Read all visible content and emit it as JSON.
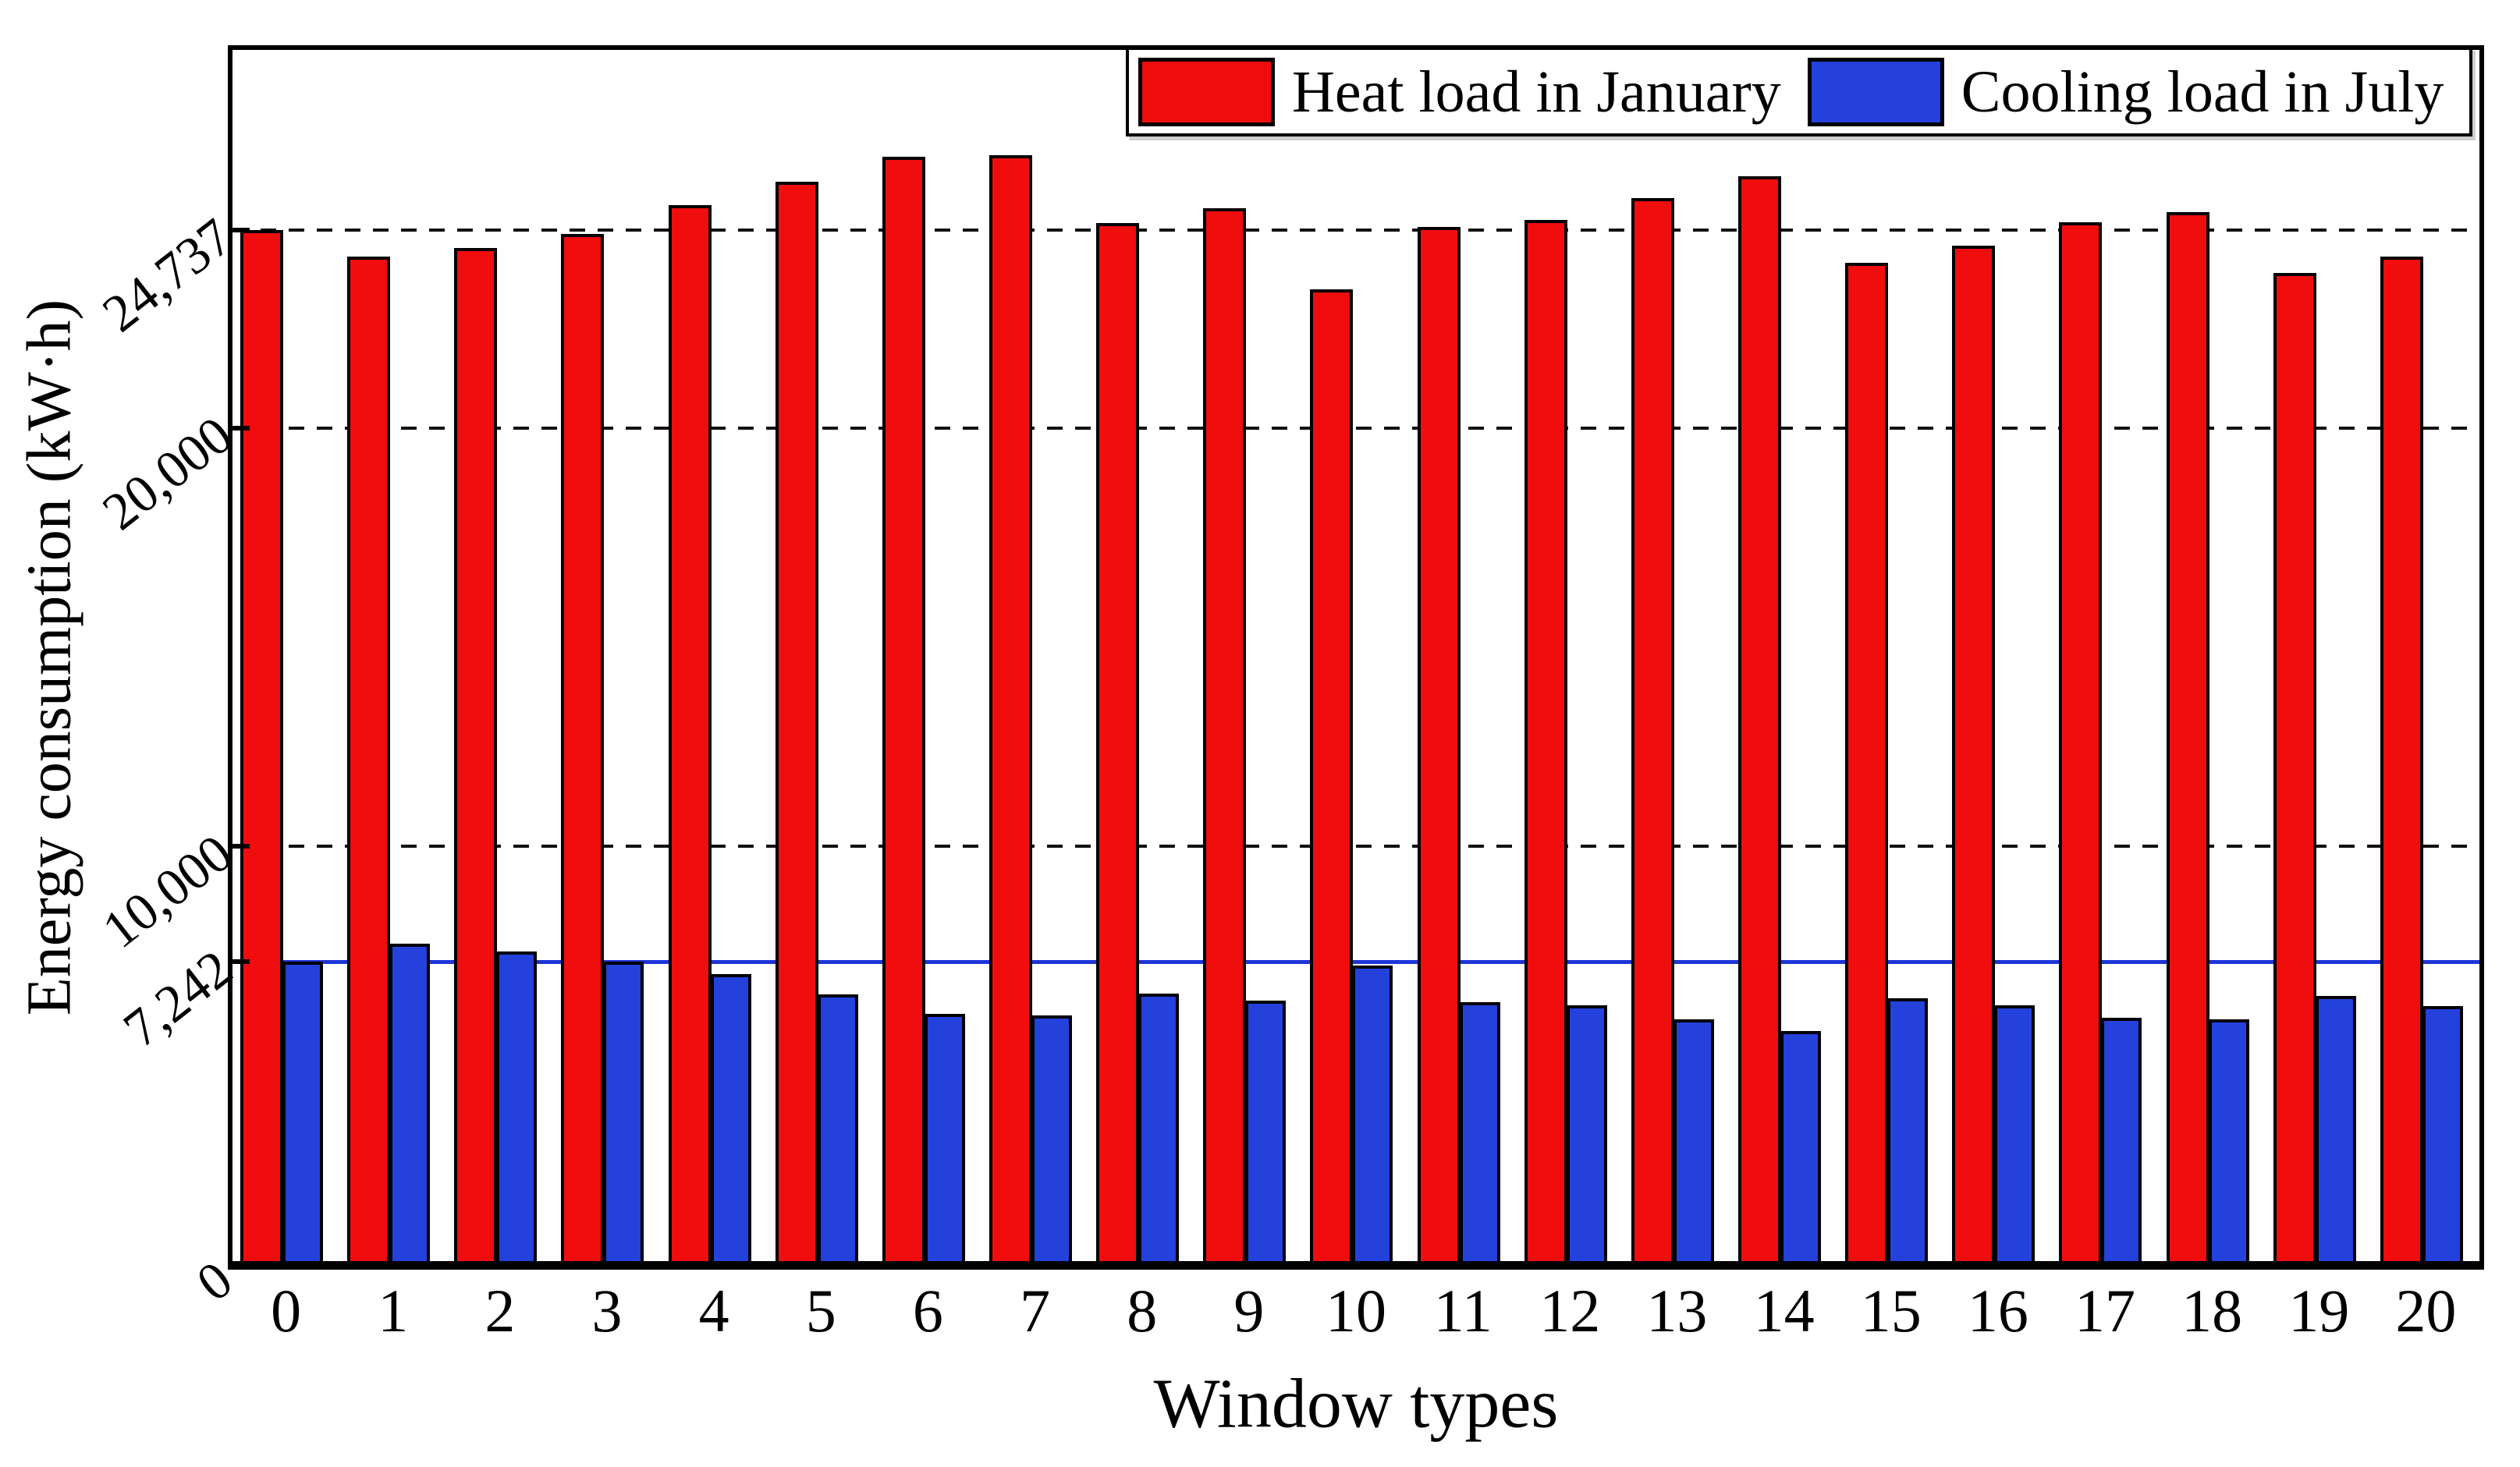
{
  "chart_data": {
    "type": "bar",
    "title": "",
    "xlabel": "Window types",
    "ylabel": "Energy consumption (kW·h)",
    "categories": [
      "0",
      "1",
      "2",
      "3",
      "4",
      "5",
      "6",
      "7",
      "8",
      "9",
      "10",
      "11",
      "12",
      "13",
      "14",
      "15",
      "16",
      "17",
      "18",
      "19",
      "20"
    ],
    "series": [
      {
        "name": "Heat load in January",
        "color": "#f00d0d",
        "values": [
          24737,
          24100,
          24310,
          24650,
          25330,
          25890,
          26480,
          26520,
          24900,
          25250,
          23320,
          24810,
          24980,
          25500,
          26020,
          23950,
          24360,
          24920,
          25170,
          23700,
          24100
        ]
      },
      {
        "name": "Cooling load in July",
        "color": "#2441dc",
        "values": [
          7242,
          7680,
          7490,
          7242,
          6960,
          6460,
          6000,
          5970,
          6490,
          6310,
          7160,
          6280,
          6210,
          5870,
          5590,
          6370,
          6210,
          5910,
          5870,
          6430,
          6180
        ]
      }
    ],
    "ylim": [
      0,
      29040
    ],
    "y_ticks": [
      {
        "value": 24737,
        "label": "24,737",
        "grid": "dashed"
      },
      {
        "value": 20000,
        "label": "20,000",
        "grid": "dashed"
      },
      {
        "value": 10000,
        "label": "10,000",
        "grid": "dashed"
      },
      {
        "value": 7242,
        "label": "7,242",
        "grid": "blue-solid"
      },
      {
        "value": 0,
        "label": "0",
        "grid": "none"
      }
    ],
    "grid": "horizontal-dashed",
    "legend_position": "top-right",
    "reference_line": {
      "value": 7242,
      "color": "#1d35d6"
    },
    "bar_edge_color": "#000000"
  },
  "legend": {
    "items": [
      {
        "label": "Heat load in January",
        "color": "#f00d0d"
      },
      {
        "label": "Cooling load in July",
        "color": "#2441dc"
      }
    ]
  },
  "axes": {
    "y_title": "Energy consumption (kW·h)",
    "x_title": "Window types"
  }
}
